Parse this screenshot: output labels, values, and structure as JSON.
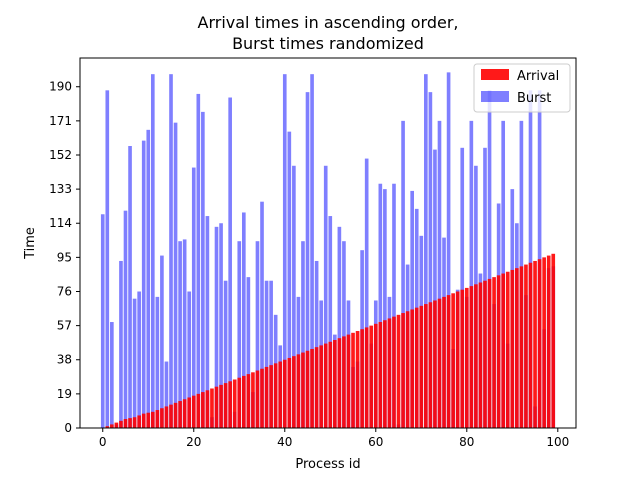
{
  "chart_data": {
    "type": "bar",
    "title_line1": "Arrival times in ascending order,",
    "title_line2": "Burst times randomized",
    "xlabel": "Process id",
    "ylabel": "Time",
    "xlim": [
      -5,
      104
    ],
    "ylim": [
      0,
      206
    ],
    "xticks": [
      0,
      20,
      40,
      60,
      80,
      100
    ],
    "yticks": [
      0,
      19,
      38,
      57,
      76,
      95,
      114,
      133,
      152,
      171,
      190
    ],
    "legend_position": "top-right",
    "x": [
      0,
      1,
      2,
      3,
      4,
      5,
      6,
      7,
      8,
      9,
      10,
      11,
      12,
      13,
      14,
      15,
      16,
      17,
      18,
      19,
      20,
      21,
      22,
      23,
      24,
      25,
      26,
      27,
      28,
      29,
      30,
      31,
      32,
      33,
      34,
      35,
      36,
      37,
      38,
      39,
      40,
      41,
      42,
      43,
      44,
      45,
      46,
      47,
      48,
      49,
      50,
      51,
      52,
      53,
      54,
      55,
      56,
      57,
      58,
      59,
      60,
      61,
      62,
      63,
      64,
      65,
      66,
      67,
      68,
      69,
      70,
      71,
      72,
      73,
      74,
      75,
      76,
      77,
      78,
      79,
      80,
      81,
      82,
      83,
      84,
      85,
      86,
      87,
      88,
      89,
      90,
      91,
      92,
      93,
      94,
      95,
      96,
      97,
      98,
      99
    ],
    "series": [
      {
        "name": "Arrival",
        "color": "#ff0000",
        "alpha": 0.9,
        "values": [
          0,
          1,
          2,
          3,
          4,
          5,
          5.5,
          6,
          7,
          8,
          8.5,
          9,
          10,
          11,
          12,
          13,
          14,
          15,
          16,
          17,
          18,
          19,
          20,
          21,
          22,
          23,
          24,
          25,
          26,
          27,
          28,
          29,
          30,
          31,
          32,
          33,
          34,
          35,
          36,
          37,
          38,
          39,
          40,
          41,
          42,
          43,
          44,
          45,
          46,
          47,
          48,
          49,
          50,
          51,
          52,
          53,
          54,
          55,
          56,
          57,
          58,
          59,
          60,
          61,
          62,
          63,
          64,
          65,
          66,
          67,
          68,
          69,
          70,
          71,
          72,
          73,
          74,
          75,
          76,
          77,
          78,
          79,
          80,
          81,
          82,
          83,
          84,
          85,
          86,
          87,
          88,
          89,
          90,
          91,
          92,
          93,
          94,
          95,
          96,
          97
        ]
      },
      {
        "name": "Burst",
        "color": "#0000ff",
        "alpha": 0.5,
        "values": [
          119,
          188,
          59,
          2,
          93,
          121,
          157,
          72,
          76,
          160,
          166,
          197,
          73,
          96,
          37,
          197,
          170,
          104,
          105,
          76,
          145,
          186,
          176,
          118,
          6,
          112,
          114,
          82,
          184,
          9,
          104,
          120,
          84,
          20,
          104,
          126,
          82,
          82,
          63,
          46,
          197,
          165,
          146,
          73,
          104,
          187,
          197,
          93,
          71,
          146,
          118,
          52,
          112,
          104,
          71,
          34,
          37,
          99,
          150,
          47,
          71,
          136,
          133,
          73,
          136,
          2,
          171,
          91,
          132,
          122,
          107,
          197,
          187,
          155,
          171,
          106,
          198,
          44,
          77,
          156,
          73,
          171,
          146,
          86,
          156,
          188,
          69,
          125,
          171,
          47,
          133,
          114,
          171,
          74,
          188,
          12,
          188,
          55,
          89,
          90
        ]
      }
    ]
  }
}
